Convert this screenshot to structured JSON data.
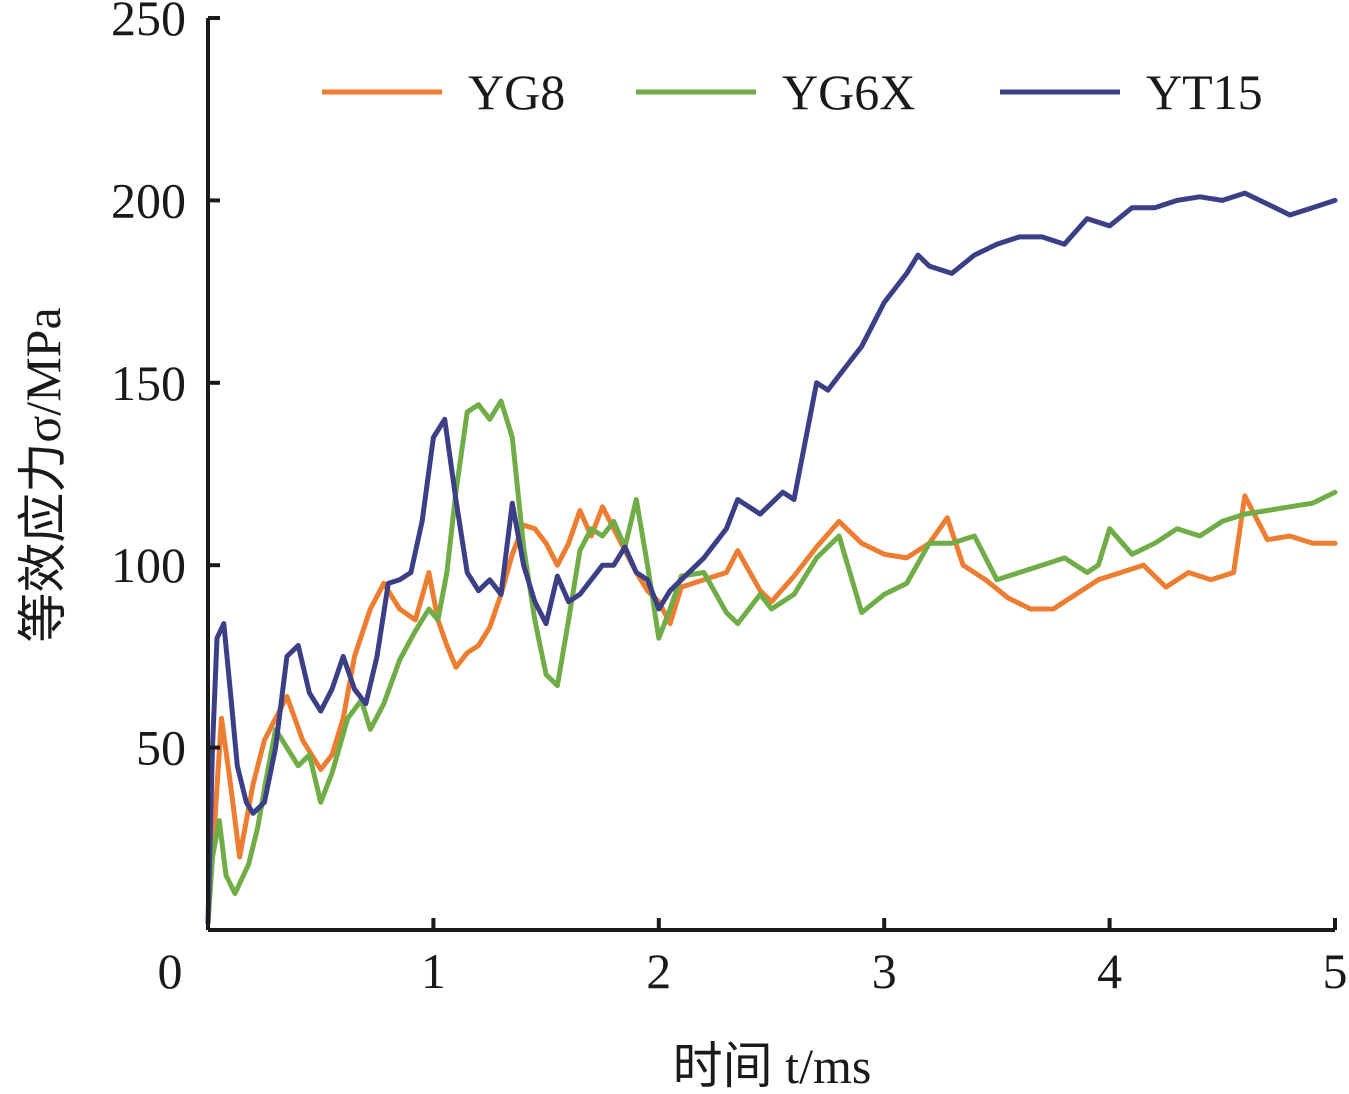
{
  "chart_data": {
    "type": "line",
    "xlabel": "时间 t/ms",
    "ylabel": "等效应力σ/MPa",
    "xlim": [
      0,
      5
    ],
    "ylim": [
      0,
      250
    ],
    "x_ticks": [
      0,
      1,
      2,
      3,
      4,
      5
    ],
    "y_ticks": [
      50,
      100,
      150,
      200,
      250
    ],
    "grid": false,
    "legend_position": "top",
    "series": [
      {
        "name": "YG8",
        "color": "#ED7D31",
        "x": [
          0,
          0.03,
          0.06,
          0.1,
          0.14,
          0.2,
          0.25,
          0.3,
          0.35,
          0.42,
          0.5,
          0.55,
          0.6,
          0.65,
          0.72,
          0.78,
          0.85,
          0.92,
          0.98,
          1.02,
          1.06,
          1.1,
          1.15,
          1.2,
          1.25,
          1.3,
          1.35,
          1.4,
          1.45,
          1.5,
          1.55,
          1.6,
          1.65,
          1.7,
          1.75,
          1.8,
          1.85,
          1.9,
          1.95,
          2.0,
          2.05,
          2.1,
          2.2,
          2.3,
          2.35,
          2.45,
          2.5,
          2.6,
          2.7,
          2.8,
          2.9,
          3.0,
          3.1,
          3.2,
          3.28,
          3.35,
          3.45,
          3.55,
          3.65,
          3.75,
          3.85,
          3.95,
          4.05,
          4.15,
          4.25,
          4.35,
          4.45,
          4.55,
          4.6,
          4.7,
          4.8,
          4.9,
          5.0
        ],
        "values": [
          2,
          30,
          58,
          40,
          20,
          40,
          52,
          58,
          64,
          52,
          44,
          48,
          58,
          75,
          88,
          95,
          88,
          85,
          98,
          85,
          78,
          72,
          76,
          78,
          83,
          92,
          103,
          111,
          110,
          106,
          100,
          106,
          115,
          108,
          116,
          110,
          104,
          98,
          93,
          90,
          84,
          94,
          96,
          98,
          104,
          93,
          90,
          97,
          105,
          112,
          106,
          103,
          102,
          106,
          113,
          100,
          96,
          91,
          88,
          88,
          92,
          96,
          98,
          100,
          94,
          98,
          96,
          98,
          119,
          107,
          108,
          106,
          106
        ]
      },
      {
        "name": "YG6X",
        "color": "#70AD47",
        "x": [
          0,
          0.02,
          0.05,
          0.08,
          0.12,
          0.18,
          0.22,
          0.26,
          0.3,
          0.35,
          0.4,
          0.45,
          0.5,
          0.55,
          0.62,
          0.68,
          0.72,
          0.78,
          0.85,
          0.92,
          0.98,
          1.02,
          1.06,
          1.1,
          1.15,
          1.2,
          1.25,
          1.3,
          1.35,
          1.4,
          1.45,
          1.5,
          1.55,
          1.6,
          1.65,
          1.7,
          1.75,
          1.8,
          1.85,
          1.9,
          1.95,
          2.0,
          2.05,
          2.1,
          2.2,
          2.3,
          2.35,
          2.45,
          2.5,
          2.6,
          2.7,
          2.8,
          2.9,
          3.0,
          3.1,
          3.2,
          3.3,
          3.4,
          3.5,
          3.6,
          3.7,
          3.8,
          3.9,
          3.95,
          4.0,
          4.1,
          4.2,
          4.3,
          4.4,
          4.5,
          4.6,
          4.7,
          4.8,
          4.9,
          5.0
        ],
        "values": [
          2,
          20,
          30,
          15,
          10,
          18,
          28,
          42,
          55,
          50,
          45,
          48,
          35,
          43,
          58,
          63,
          55,
          62,
          74,
          82,
          88,
          85,
          98,
          120,
          142,
          144,
          140,
          145,
          135,
          105,
          85,
          70,
          67,
          85,
          104,
          110,
          108,
          112,
          105,
          118,
          100,
          80,
          88,
          97,
          98,
          87,
          84,
          92,
          88,
          92,
          102,
          108,
          87,
          92,
          95,
          106,
          106,
          108,
          96,
          98,
          100,
          102,
          98,
          100,
          110,
          103,
          106,
          110,
          108,
          112,
          114,
          115,
          116,
          117,
          120
        ]
      },
      {
        "name": "YT15",
        "color": "#3B3F86",
        "x": [
          0,
          0.02,
          0.04,
          0.07,
          0.1,
          0.13,
          0.17,
          0.2,
          0.25,
          0.3,
          0.35,
          0.4,
          0.45,
          0.5,
          0.55,
          0.6,
          0.65,
          0.7,
          0.75,
          0.8,
          0.85,
          0.9,
          0.95,
          1.0,
          1.05,
          1.1,
          1.15,
          1.2,
          1.25,
          1.3,
          1.35,
          1.4,
          1.45,
          1.5,
          1.55,
          1.6,
          1.65,
          1.7,
          1.75,
          1.8,
          1.85,
          1.9,
          1.95,
          2.0,
          2.05,
          2.1,
          2.2,
          2.3,
          2.35,
          2.45,
          2.55,
          2.6,
          2.7,
          2.75,
          2.8,
          2.9,
          3.0,
          3.1,
          3.15,
          3.2,
          3.3,
          3.4,
          3.5,
          3.6,
          3.7,
          3.8,
          3.9,
          4.0,
          4.1,
          4.2,
          4.3,
          4.4,
          4.5,
          4.6,
          4.7,
          4.8,
          4.9,
          5.0
        ],
        "values": [
          2,
          50,
          80,
          84,
          65,
          45,
          35,
          32,
          35,
          50,
          75,
          78,
          65,
          60,
          66,
          75,
          66,
          62,
          75,
          95,
          96,
          98,
          112,
          135,
          140,
          118,
          98,
          93,
          96,
          92,
          117,
          100,
          90,
          84,
          97,
          90,
          92,
          96,
          100,
          100,
          105,
          98,
          96,
          88,
          93,
          96,
          102,
          110,
          118,
          114,
          120,
          118,
          150,
          148,
          152,
          160,
          172,
          180,
          185,
          182,
          180,
          185,
          188,
          190,
          190,
          188,
          195,
          193,
          198,
          198,
          200,
          201,
          200,
          202,
          199,
          196,
          198,
          200
        ]
      }
    ]
  }
}
